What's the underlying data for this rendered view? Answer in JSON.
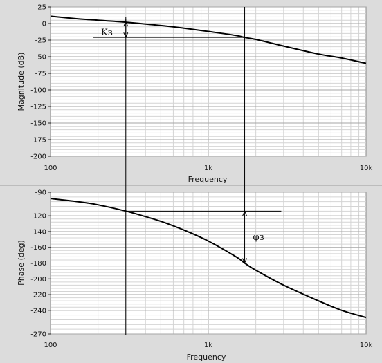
{
  "chart_data": [
    {
      "type": "line",
      "title": "",
      "xlabel": "Frequency",
      "ylabel": "Magnitude (dB)",
      "xscale": "log",
      "xlim": [
        100,
        10000
      ],
      "ylim": [
        -200,
        25
      ],
      "x_ticks": [
        {
          "value": 100,
          "label": "100"
        },
        {
          "value": 1000,
          "label": "1k"
        },
        {
          "value": 10000,
          "label": "10k"
        }
      ],
      "y_ticks": [
        25,
        0,
        -25,
        -50,
        -75,
        -100,
        -125,
        -150,
        -175,
        -200
      ],
      "y_tick_labels": [
        "25",
        "0",
        "-25",
        "-50",
        "-75",
        "-100",
        "-125",
        "-150",
        "-175",
        "-200"
      ],
      "grid": true,
      "series": [
        {
          "x": [
            100,
            150,
            200,
            300,
            500,
            700,
            1000,
            1500,
            1700,
            2000,
            3000,
            5000,
            7000,
            10000
          ],
          "values": [
            11,
            7,
            5,
            2,
            -3,
            -7,
            -12,
            -18,
            -21,
            -24,
            -34,
            -46,
            -52,
            -60
          ]
        }
      ],
      "annotation": "Kз",
      "annotation_ref": {
        "x": 300,
        "y": 2
      }
    },
    {
      "type": "line",
      "title": "",
      "xlabel": "Frequency",
      "ylabel": "Phase (deg)",
      "xscale": "log",
      "xlim": [
        100,
        10000
      ],
      "ylim": [
        -270,
        -90
      ],
      "x_ticks": [
        {
          "value": 100,
          "label": "100"
        },
        {
          "value": 1000,
          "label": "1k"
        },
        {
          "value": 10000,
          "label": "10k"
        }
      ],
      "y_ticks": [
        -90,
        -120,
        -140,
        -160,
        -180,
        -200,
        -220,
        -240,
        -270
      ],
      "y_tick_labels": [
        "-90",
        "-120",
        "-140",
        "-160",
        "-180",
        "-200",
        "-220",
        "-240",
        "-270"
      ],
      "grid": true,
      "series": [
        {
          "x": [
            100,
            150,
            200,
            300,
            400,
            500,
            700,
            1000,
            1500,
            1700,
            2000,
            3000,
            5000,
            7000,
            10000
          ],
          "values": [
            -98,
            -102,
            -106,
            -114,
            -121,
            -127,
            -138,
            -152,
            -172,
            -180,
            -189,
            -208,
            -228,
            -240,
            -249
          ]
        }
      ],
      "annotation": "φз",
      "annotation_ref": {
        "x": 1700,
        "y_from": -114,
        "y_to": -180
      }
    }
  ],
  "colors": {
    "background": "#dcdcdc",
    "plot": "#ffffff",
    "grid_major": "#a6a6a6",
    "grid_minor": "#d4d4d4",
    "curve": "#000000"
  }
}
